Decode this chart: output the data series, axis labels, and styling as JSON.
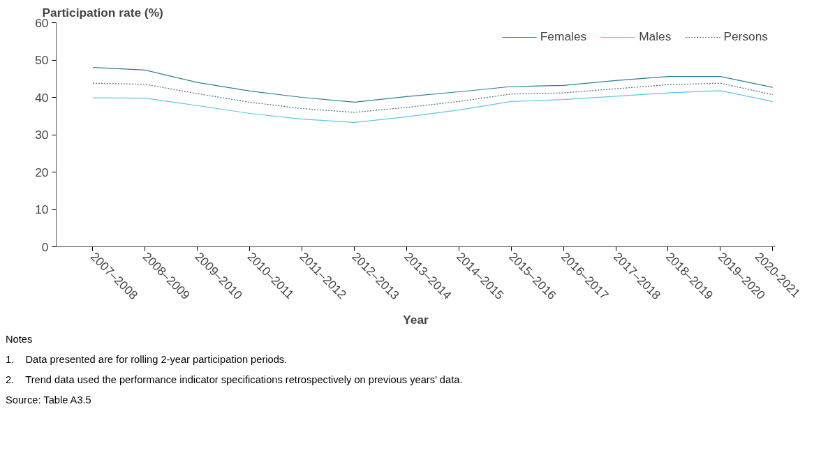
{
  "chart_data": {
    "type": "line",
    "ylabel": "Participation rate (%)",
    "xlabel": "Year",
    "categories": [
      "2007–2008",
      "2008–2009",
      "2009–2010",
      "2010–2011",
      "2011–2012",
      "2012–2013",
      "2013–2014",
      "2014–2015",
      "2015–2016",
      "2016–2017",
      "2017–2018",
      "2018–2019",
      "2019–2020",
      "2020-2021"
    ],
    "series": [
      {
        "name": "Females",
        "color": "#2a7f98",
        "line_style": "solid",
        "values": [
          48.0,
          47.3,
          44.0,
          41.7,
          40.0,
          38.7,
          40.2,
          41.5,
          42.9,
          43.2,
          44.5,
          45.6,
          45.6,
          42.7
        ]
      },
      {
        "name": "Males",
        "color": "#5bc8e6",
        "line_style": "solid",
        "values": [
          39.9,
          39.8,
          37.8,
          35.7,
          34.2,
          33.3,
          34.8,
          36.6,
          38.9,
          39.4,
          40.3,
          41.2,
          41.8,
          38.9
        ]
      },
      {
        "name": "Persons",
        "color": "#4a6b78",
        "line_style": "dotted",
        "values": [
          43.8,
          43.5,
          41.0,
          38.7,
          37.0,
          36.0,
          37.3,
          38.9,
          40.9,
          41.2,
          42.3,
          43.4,
          43.8,
          40.7
        ]
      }
    ],
    "ylim": [
      0,
      60
    ],
    "yticks": [
      0,
      10,
      20,
      30,
      40,
      50,
      60
    ],
    "grid": false,
    "legend": "top right",
    "marker": "none",
    "annotations": [
      "Notes",
      "1.    Data presented are for rolling 2-year participation periods.",
      "2.    Trend data used the performance indicator specifications retrospectively on previous years’ data.",
      "Source: Table A3.5"
    ]
  }
}
